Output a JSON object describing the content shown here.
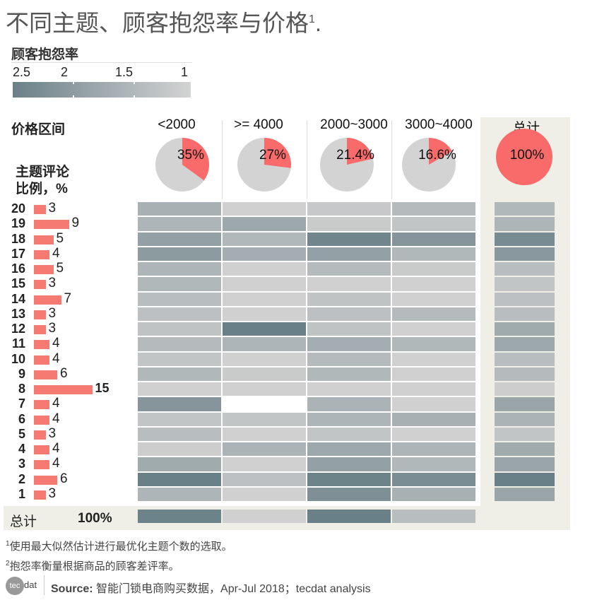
{
  "title": "不同主题、顾客抱怨率与价格",
  "title_sup": "1",
  "title_end": ".",
  "legend": {
    "title": "顾客抱怨率",
    "ticks": [
      "2.5",
      "2",
      "1.5",
      "1"
    ],
    "range": [
      1,
      2.5
    ],
    "color_low": "#d0d0d0",
    "color_high": "#6a8088"
  },
  "price_label": "价格区间",
  "topic_label_1": "主题评论",
  "topic_label_2": "比例，%",
  "total_label": "总计",
  "total_pct": "100%",
  "chart_data": {
    "type": "heatmap",
    "columns": [
      "<2000",
      ">= 4000",
      "2000~3000",
      "3000~4000",
      "总计"
    ],
    "column_shares": [
      {
        "label": "35%",
        "value": 35
      },
      {
        "label": "27%",
        "value": 27
      },
      {
        "label": "21.4%",
        "value": 21.4
      },
      {
        "label": "16.6%",
        "value": 16.6
      },
      {
        "label": "100%",
        "value": 100
      }
    ],
    "rows": [
      "20",
      "19",
      "18",
      "17",
      "16",
      "15",
      "14",
      "13",
      "12",
      "11",
      "10",
      "9",
      "8",
      "7",
      "6",
      "5",
      "4",
      "3",
      "2",
      "1"
    ],
    "topic_share_pct": [
      3,
      9,
      5,
      4,
      5,
      3,
      7,
      3,
      3,
      4,
      4,
      6,
      15,
      4,
      4,
      3,
      4,
      4,
      6,
      3
    ],
    "complaint_rate": [
      [
        1.6,
        1.0,
        1.15,
        1.4,
        1.45
      ],
      [
        1.5,
        1.75,
        1.1,
        1.2,
        1.5
      ],
      [
        1.9,
        1.45,
        2.4,
        2.1,
        2.3
      ],
      [
        2.0,
        1.65,
        1.9,
        1.45,
        2.05
      ],
      [
        1.5,
        1.0,
        1.4,
        1.1,
        1.35
      ],
      [
        1.45,
        1.0,
        1.0,
        1.0,
        1.2
      ],
      [
        1.35,
        1.0,
        1.25,
        1.0,
        1.3
      ],
      [
        1.3,
        1.0,
        1.3,
        1.4,
        1.35
      ],
      [
        1.25,
        2.5,
        1.25,
        1.0,
        1.7
      ],
      [
        1.4,
        1.5,
        1.65,
        1.45,
        1.75
      ],
      [
        1.2,
        1.0,
        1.4,
        1.0,
        1.35
      ],
      [
        1.45,
        1.1,
        1.45,
        1.0,
        1.4
      ],
      [
        1.0,
        1.0,
        1.0,
        1.0,
        1.05
      ],
      [
        2.1,
        null,
        1.55,
        1.0,
        1.8
      ],
      [
        1.2,
        1.2,
        1.5,
        1.6,
        1.55
      ],
      [
        1.35,
        1.0,
        1.2,
        1.0,
        1.2
      ],
      [
        1.05,
        1.55,
        1.75,
        1.5,
        1.7
      ],
      [
        1.7,
        1.0,
        1.9,
        1.45,
        1.8
      ],
      [
        2.5,
        1.3,
        2.45,
        2.25,
        2.5
      ],
      [
        1.5,
        1.0,
        2.2,
        1.6,
        1.8
      ]
    ],
    "total_row_complaint_rate": [
      2.45,
      1.0,
      2.5,
      1.35
    ],
    "pie_color": "#f96b6b",
    "pie_rest_color": "#d3d3d3"
  },
  "footnotes": [
    {
      "sup": "1",
      "text": "使用最大似然估计进行最优化主题个数的选取。"
    },
    {
      "sup": "2",
      "text": "抱怨率衡量根据商品的顾客差评率。"
    }
  ],
  "logo": {
    "tec": "tec",
    "dat": "dat"
  },
  "source": {
    "label": "Source:",
    "text": " 智能门锁电商购买数据，Apr-Jul 2018；tecdat analysis"
  }
}
